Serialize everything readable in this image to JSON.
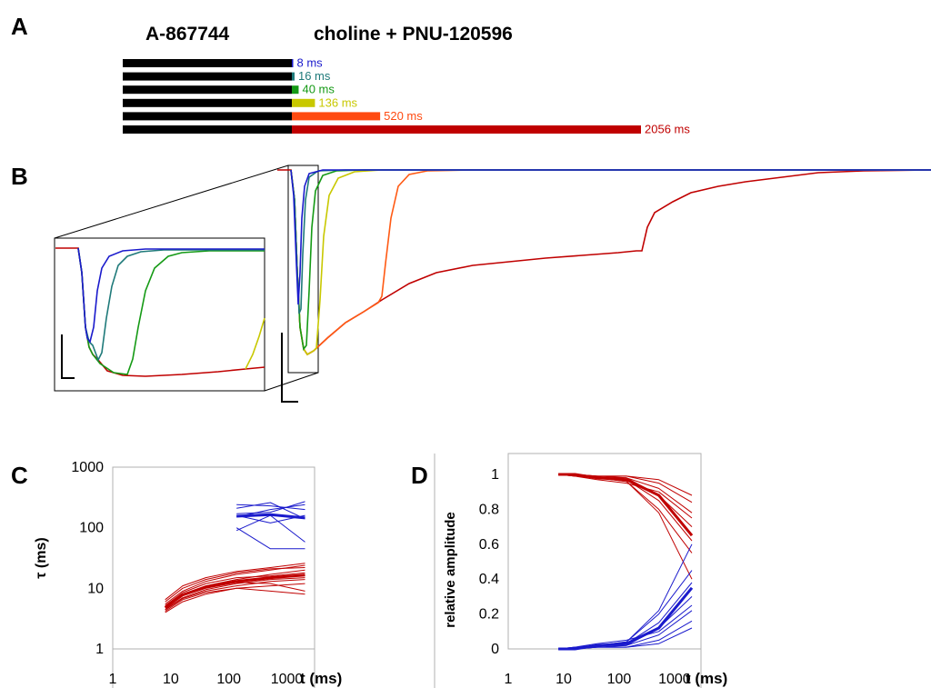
{
  "panel_labels": {
    "a": "A",
    "b": "B",
    "c": "C",
    "d": "D"
  },
  "panel_a": {
    "left_label": "A-867744",
    "right_label": "choline + PNU-120596",
    "pulses": [
      {
        "label": "8 ms",
        "duration_ms": 8,
        "color": "#1a1acc"
      },
      {
        "label": "16 ms",
        "duration_ms": 16,
        "color": "#1f7a7a"
      },
      {
        "label": "40 ms",
        "duration_ms": 40,
        "color": "#159a15"
      },
      {
        "label": "136 ms",
        "duration_ms": 136,
        "color": "#c8c800"
      },
      {
        "label": "520 ms",
        "duration_ms": 520,
        "color": "#ff4a10"
      },
      {
        "label": "2056 ms",
        "duration_ms": 2056,
        "color": "#c00000"
      }
    ]
  },
  "chart_data": [
    {
      "type": "line",
      "panel": "C",
      "xlabel": "t (ms)",
      "ylabel": "τ (ms)",
      "x_scale": "log",
      "y_scale": "log",
      "xlim": [
        1,
        3000
      ],
      "ylim": [
        1,
        1000
      ],
      "x_ticks": [
        "1",
        "10",
        "100",
        "1000"
      ],
      "y_ticks": [
        "1",
        "10",
        "100",
        "1000"
      ],
      "grid": false,
      "x": [
        8,
        16,
        40,
        136,
        520,
        2056
      ],
      "series": [
        {
          "color": "#c00000",
          "width": 1,
          "values": [
            4.0,
            6.0,
            8.0,
            10.0,
            11.0,
            12.0
          ]
        },
        {
          "color": "#c00000",
          "width": 1,
          "values": [
            4.5,
            7.0,
            9.5,
            12.0,
            14.0,
            15.0
          ]
        },
        {
          "color": "#c00000",
          "width": 1,
          "values": [
            5.0,
            8.0,
            11.0,
            14.0,
            17.0,
            20.0
          ]
        },
        {
          "color": "#c00000",
          "width": 1,
          "values": [
            5.5,
            9.0,
            13.0,
            17.0,
            20.0,
            24.0
          ]
        },
        {
          "color": "#c00000",
          "width": 1,
          "values": [
            6.5,
            11.0,
            15.0,
            19.0,
            22.0,
            26.0
          ]
        },
        {
          "color": "#c00000",
          "width": 1,
          "values": [
            4.2,
            6.5,
            8.5,
            10.0,
            9.0,
            8.0
          ]
        },
        {
          "color": "#c00000",
          "width": 1,
          "values": [
            4.8,
            7.5,
            10.0,
            12.5,
            12.0,
            9.0
          ]
        },
        {
          "color": "#c00000",
          "width": 1,
          "values": [
            5.2,
            8.5,
            12.0,
            15.0,
            16.0,
            18.0
          ]
        },
        {
          "color": "#c00000",
          "width": 1,
          "values": [
            4.4,
            6.8,
            9.0,
            11.0,
            13.0,
            14.0
          ]
        },
        {
          "color": "#c00000",
          "width": 1,
          "values": [
            6.0,
            10.0,
            14.0,
            18.0,
            21.0,
            22.0
          ]
        },
        {
          "color": "#c00000",
          "width": 3,
          "values": [
            4.8,
            7.8,
            10.5,
            13.0,
            15.0,
            16.5
          ]
        },
        {
          "color": "#1a1acc",
          "x": [
            136,
            520,
            2056
          ],
          "width": 1,
          "values": [
            240,
            230,
            200
          ]
        },
        {
          "color": "#1a1acc",
          "x": [
            136,
            520,
            2056
          ],
          "width": 1,
          "values": [
            210,
            260,
            140
          ]
        },
        {
          "color": "#1a1acc",
          "x": [
            136,
            520,
            2056
          ],
          "width": 1,
          "values": [
            170,
            180,
            270
          ]
        },
        {
          "color": "#1a1acc",
          "x": [
            136,
            520,
            2056
          ],
          "width": 1,
          "values": [
            150,
            200,
            240
          ]
        },
        {
          "color": "#1a1acc",
          "x": [
            136,
            520,
            2056
          ],
          "width": 1,
          "values": [
            100,
            45,
            45
          ]
        },
        {
          "color": "#1a1acc",
          "x": [
            136,
            520,
            2056
          ],
          "width": 1,
          "values": [
            90,
            160,
            58
          ]
        },
        {
          "color": "#1a1acc",
          "x": [
            136,
            520,
            2056
          ],
          "width": 1,
          "values": [
            160,
            120,
            160
          ]
        },
        {
          "color": "#1a1acc",
          "x": [
            136,
            520,
            2056
          ],
          "width": 3,
          "values": [
            155,
            165,
            145
          ]
        }
      ]
    },
    {
      "type": "line",
      "panel": "D",
      "xlabel": "t (ms)",
      "ylabel": "relative amplitude",
      "x_scale": "log",
      "y_scale": "linear",
      "xlim": [
        1,
        3000
      ],
      "ylim": [
        0,
        1
      ],
      "x_ticks": [
        "1",
        "10",
        "100",
        "1000"
      ],
      "y_ticks": [
        "0",
        "0.2",
        "0.4",
        "0.6",
        "0.8",
        "1"
      ],
      "grid": false,
      "x": [
        8,
        16,
        40,
        136,
        520,
        2056
      ],
      "series": [
        {
          "color": "#c00000",
          "width": 1,
          "values": [
            1.0,
            1.0,
            0.99,
            0.99,
            0.95,
            0.84
          ]
        },
        {
          "color": "#c00000",
          "width": 1,
          "values": [
            1.0,
            1.0,
            0.99,
            0.98,
            0.92,
            0.78
          ]
        },
        {
          "color": "#c00000",
          "width": 1,
          "values": [
            1.0,
            1.0,
            0.98,
            0.98,
            0.88,
            0.7
          ]
        },
        {
          "color": "#c00000",
          "width": 1,
          "values": [
            1.0,
            0.99,
            0.98,
            0.97,
            0.85,
            0.62
          ]
        },
        {
          "color": "#c00000",
          "width": 1,
          "values": [
            1.0,
            0.99,
            0.98,
            0.96,
            0.8,
            0.55
          ]
        },
        {
          "color": "#c00000",
          "width": 1,
          "values": [
            1.0,
            1.0,
            0.99,
            0.99,
            0.97,
            0.88
          ]
        },
        {
          "color": "#c00000",
          "width": 1,
          "values": [
            1.0,
            1.0,
            0.98,
            0.96,
            0.78,
            0.4
          ]
        },
        {
          "color": "#c00000",
          "width": 1,
          "values": [
            1.0,
            0.99,
            0.97,
            0.95,
            0.9,
            0.75
          ]
        },
        {
          "color": "#c00000",
          "width": 3,
          "values": [
            1.0,
            1.0,
            0.98,
            0.97,
            0.88,
            0.65
          ]
        },
        {
          "color": "#1a1acc",
          "width": 1,
          "values": [
            0.0,
            0.0,
            0.01,
            0.01,
            0.05,
            0.16
          ]
        },
        {
          "color": "#1a1acc",
          "width": 1,
          "values": [
            0.0,
            0.0,
            0.01,
            0.02,
            0.08,
            0.22
          ]
        },
        {
          "color": "#1a1acc",
          "width": 1,
          "values": [
            0.0,
            0.0,
            0.02,
            0.02,
            0.12,
            0.3
          ]
        },
        {
          "color": "#1a1acc",
          "width": 1,
          "values": [
            0.0,
            0.01,
            0.02,
            0.03,
            0.15,
            0.38
          ]
        },
        {
          "color": "#1a1acc",
          "width": 1,
          "values": [
            0.0,
            0.01,
            0.02,
            0.04,
            0.2,
            0.45
          ]
        },
        {
          "color": "#1a1acc",
          "width": 1,
          "values": [
            0.0,
            0.0,
            0.01,
            0.01,
            0.03,
            0.12
          ]
        },
        {
          "color": "#1a1acc",
          "width": 1,
          "values": [
            0.0,
            0.0,
            0.02,
            0.04,
            0.22,
            0.6
          ]
        },
        {
          "color": "#1a1acc",
          "width": 1,
          "values": [
            0.0,
            0.01,
            0.03,
            0.05,
            0.1,
            0.25
          ]
        },
        {
          "color": "#1a1acc",
          "width": 3,
          "values": [
            0.0,
            0.0,
            0.02,
            0.03,
            0.12,
            0.35
          ]
        }
      ]
    }
  ]
}
